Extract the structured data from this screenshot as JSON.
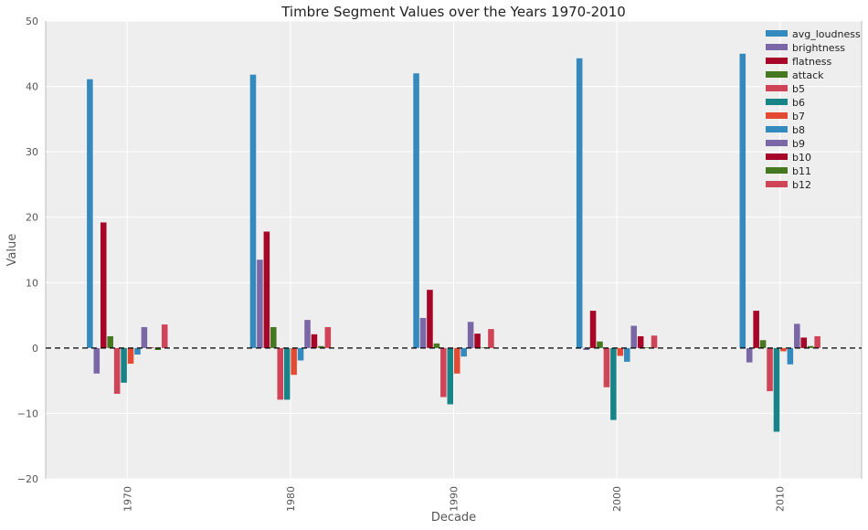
{
  "chart_data": {
    "type": "bar",
    "title": "Timbre Segment Values over the Years 1970-2010",
    "xlabel": "Decade",
    "ylabel": "Value",
    "ylim": [
      -20,
      50
    ],
    "yticks": [
      -20,
      -10,
      0,
      10,
      20,
      30,
      40,
      50
    ],
    "categories": [
      "1970",
      "1980",
      "1990",
      "2000",
      "2010"
    ],
    "grid": true,
    "legend_position": "top-right",
    "zero_line": "dashed",
    "series": [
      {
        "name": "avg_loudness",
        "color": "#348ABD",
        "values": [
          41.1,
          41.8,
          42.0,
          44.3,
          45.0
        ]
      },
      {
        "name": "brightness",
        "color": "#7A68A6",
        "values": [
          -3.9,
          13.5,
          4.6,
          -0.3,
          -2.2
        ]
      },
      {
        "name": "flatness",
        "color": "#A60628",
        "values": [
          19.2,
          17.8,
          8.9,
          5.7,
          5.7
        ]
      },
      {
        "name": "attack",
        "color": "#467821",
        "values": [
          1.8,
          3.2,
          0.7,
          1.0,
          1.2
        ]
      },
      {
        "name": "b5",
        "color": "#CF4457",
        "values": [
          -7.0,
          -7.9,
          -7.5,
          -6.0,
          -6.6
        ]
      },
      {
        "name": "b6",
        "color": "#188487",
        "values": [
          -5.3,
          -7.9,
          -8.6,
          -11.0,
          -12.8
        ]
      },
      {
        "name": "b7",
        "color": "#E24A33",
        "values": [
          -2.4,
          -4.1,
          -3.9,
          -1.2,
          -0.5
        ]
      },
      {
        "name": "b8",
        "color": "#348ABD",
        "values": [
          -1.0,
          -1.9,
          -1.3,
          -2.1,
          -2.5
        ]
      },
      {
        "name": "b9",
        "color": "#7A68A6",
        "values": [
          3.2,
          4.3,
          4.0,
          3.4,
          3.7
        ]
      },
      {
        "name": "b10",
        "color": "#A60628",
        "values": [
          0.1,
          2.1,
          2.2,
          1.8,
          1.6
        ]
      },
      {
        "name": "b11",
        "color": "#467821",
        "values": [
          -0.3,
          0.3,
          0.1,
          0.1,
          0.3
        ]
      },
      {
        "name": "b12",
        "color": "#CF4457",
        "values": [
          3.6,
          3.2,
          2.9,
          1.9,
          1.8
        ]
      }
    ]
  }
}
